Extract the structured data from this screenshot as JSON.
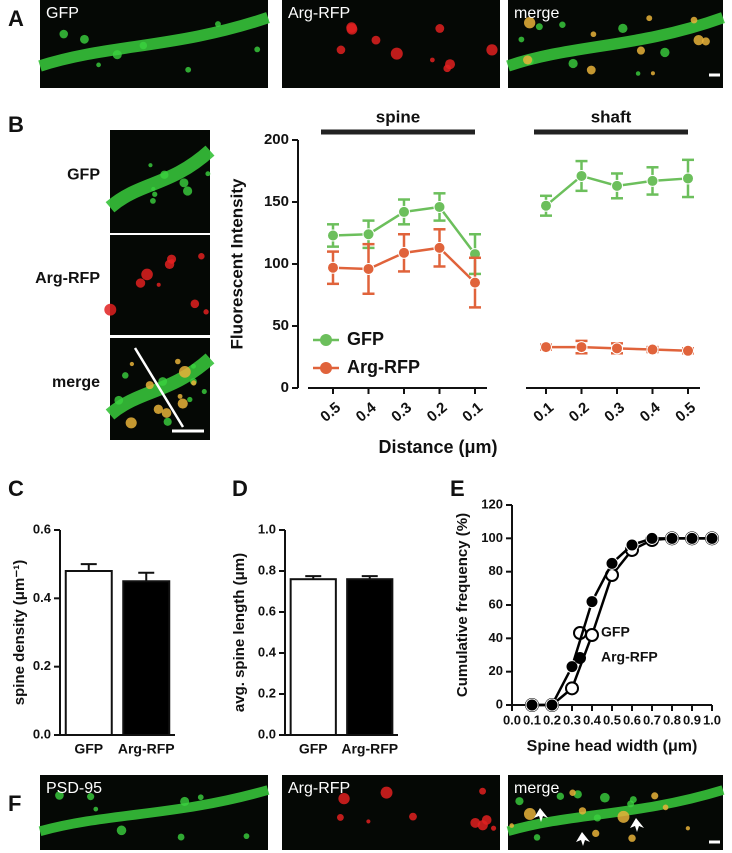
{
  "panel_labels": [
    "A",
    "B",
    "C",
    "D",
    "E",
    "F"
  ],
  "image_labels": {
    "A": [
      "GFP",
      "Arg-RFP",
      "merge"
    ],
    "B": [
      "GFP",
      "Arg-RFP",
      "merge"
    ],
    "F": [
      "PSD-95",
      "Arg-RFP",
      "merge"
    ]
  },
  "chart_data": [
    {
      "type": "line",
      "groups": [
        "spine",
        "shaft"
      ],
      "categories": [
        "0.5",
        "0.4",
        "0.3",
        "0.2",
        "0.1",
        null,
        "0.1",
        "0.2",
        "0.3",
        "0.4",
        "0.5"
      ],
      "series": [
        {
          "name": "GFP",
          "color": "#6cbf5c",
          "marker": "filled",
          "values": [
            123,
            124,
            142,
            146,
            108,
            null,
            147,
            171,
            163,
            167,
            169
          ],
          "errors": [
            9,
            11,
            10,
            11,
            16,
            null,
            8,
            12,
            10,
            11,
            15
          ]
        },
        {
          "name": "Arg-RFP",
          "color": "#e0633b",
          "marker": "filled",
          "values": [
            97,
            96,
            109,
            113,
            85,
            null,
            33,
            33,
            32,
            31,
            30
          ],
          "errors": [
            13,
            20,
            15,
            15,
            20,
            null,
            2,
            5,
            4,
            2,
            2
          ]
        }
      ],
      "ylim": [
        0,
        200
      ],
      "yticks": [
        0,
        50,
        100,
        150,
        200
      ],
      "ylabel": "Fluorescent Intensity",
      "xlabel": "Distance (μm)",
      "legend": "lower left"
    },
    {
      "type": "bar",
      "categories": [
        "GFP",
        "Arg-RFP"
      ],
      "values": [
        0.48,
        0.45
      ],
      "errors": [
        0.02,
        0.025
      ],
      "colors": [
        "#ffffff",
        "#000000"
      ],
      "ylim": [
        0,
        0.6
      ],
      "yticks": [
        {
          "value": 0,
          "label": "0.0"
        },
        0.2,
        0.4,
        0.6
      ],
      "ylabel": "spine density (μm⁻¹)"
    },
    {
      "type": "bar",
      "categories": [
        "GFP",
        "Arg-RFP"
      ],
      "values": [
        0.76,
        0.76
      ],
      "errors": [
        0.015,
        0.015
      ],
      "colors": [
        "#ffffff",
        "#000000"
      ],
      "ylim": [
        0,
        1.0
      ],
      "yticks": [
        {
          "value": 0,
          "label": "0.0"
        },
        0.2,
        0.4,
        0.6,
        0.8,
        {
          "value": 1,
          "label": "1.0"
        }
      ],
      "ylabel": "avg. spine length (μm)"
    },
    {
      "type": "line",
      "x": [
        0.1,
        0.2,
        0.3,
        0.4,
        0.5,
        0.6,
        0.7,
        0.8,
        0.9,
        1.0
      ],
      "series": [
        {
          "name": "GFP",
          "color": "#000000",
          "marker": "open",
          "values": [
            0,
            0,
            10,
            42,
            78,
            93,
            99,
            100,
            100,
            100
          ]
        },
        {
          "name": "Arg-RFP",
          "color": "#000000",
          "marker": "filled",
          "values": [
            0,
            0,
            23,
            62,
            85,
            96,
            100,
            100,
            100,
            100
          ]
        }
      ],
      "xlim": [
        0,
        1.0
      ],
      "xticks": [
        {
          "value": 0,
          "label": "0.0"
        },
        0.1,
        0.2,
        0.3,
        0.4,
        0.5,
        0.6,
        0.7,
        0.8,
        0.9,
        {
          "value": 1,
          "label": "1.0"
        }
      ],
      "ylim": [
        0,
        120
      ],
      "yticks": [
        0,
        20,
        40,
        60,
        80,
        100,
        120
      ],
      "ylabel": "Cumulative frequency (%)",
      "xlabel": "Spine head width (μm)",
      "legend": "lower right"
    }
  ]
}
